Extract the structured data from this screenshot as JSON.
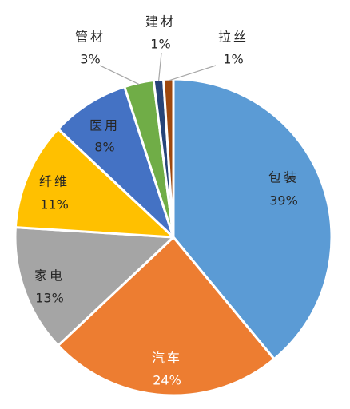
{
  "chart_data": {
    "type": "pie",
    "slices": [
      {
        "name": "包装",
        "value": 39,
        "label": "39%",
        "color": "#5B9BD5",
        "text_color": "#262626"
      },
      {
        "name": "汽车",
        "value": 24,
        "label": "24%",
        "color": "#ED7D31",
        "text_color": "#FFFFFF"
      },
      {
        "name": "家电",
        "value": 13,
        "label": "13%",
        "color": "#A5A5A5",
        "text_color": "#262626"
      },
      {
        "name": "纤维",
        "value": 11,
        "label": "11%",
        "color": "#FFC000",
        "text_color": "#262626"
      },
      {
        "name": "医用",
        "value": 8,
        "label": "8%",
        "color": "#4472C4",
        "text_color": "#262626"
      },
      {
        "name": "管材",
        "value": 3,
        "label": "3%",
        "color": "#70AD47",
        "text_color": "#262626"
      },
      {
        "name": "建材",
        "value": 1,
        "label": "1%",
        "color": "#264478",
        "text_color": "#262626"
      },
      {
        "name": "拉丝",
        "value": 1,
        "label": "1%",
        "color": "#9E480E",
        "text_color": "#262626"
      }
    ],
    "start_angle": "12 o'clock",
    "direction": "clockwise",
    "legend": "none"
  }
}
